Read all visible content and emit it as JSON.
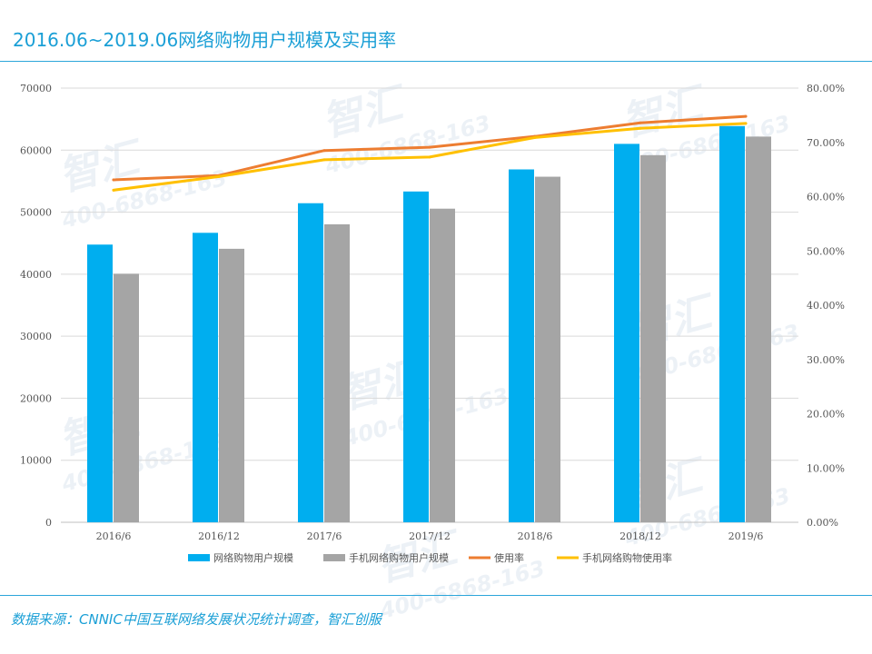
{
  "header": {
    "title": "2016.06~2019.06网络购物用户规模及实用率"
  },
  "footer": {
    "source": "数据来源：CNNIC中国互联网络发展状况统计调查，智汇创服"
  },
  "watermark": {
    "brand": "智汇",
    "phone": "400-6868-163"
  },
  "colors": {
    "accent": "#1a9fd6",
    "series1": "#00aeef",
    "series2": "#a5a5a5",
    "series3": "#ed7d31",
    "series4": "#ffc000"
  },
  "chart_data": {
    "type": "bar",
    "title": "2016.06~2019.06网络购物用户规模及实用率",
    "categories": [
      "2016/6",
      "2016/12",
      "2017/6",
      "2017/12",
      "2018/6",
      "2018/12",
      "2019/6"
    ],
    "ylim": [
      0,
      70000
    ],
    "yticks": [
      "0",
      "10000",
      "20000",
      "30000",
      "40000",
      "50000",
      "60000",
      "70000"
    ],
    "y2lim": [
      0,
      0.8
    ],
    "y2ticks": [
      "0.00%",
      "10.00%",
      "20.00%",
      "30.00%",
      "40.00%",
      "50.00%",
      "60.00%",
      "70.00%",
      "80.00%"
    ],
    "grid": true,
    "legend_position": "bottom",
    "series": [
      {
        "name": "网络购物用户规模",
        "type": "bar",
        "axis": "left",
        "color": "#00aeef",
        "values": [
          44772,
          46670,
          51443,
          53332,
          56892,
          61011,
          63882
        ]
      },
      {
        "name": "手机网络购物用户规模",
        "type": "bar",
        "axis": "left",
        "color": "#a5a5a5",
        "values": [
          40070,
          44093,
          48042,
          50563,
          55715,
          59191,
          62183
        ]
      },
      {
        "name": "使用率",
        "type": "line",
        "axis": "right",
        "color": "#ed7d31",
        "values": [
          0.631,
          0.639,
          0.685,
          0.691,
          0.711,
          0.736,
          0.748
        ]
      },
      {
        "name": "手机网络购物使用率",
        "type": "line",
        "axis": "right",
        "color": "#ffc000",
        "values": [
          0.612,
          0.637,
          0.668,
          0.673,
          0.709,
          0.726,
          0.735
        ]
      }
    ]
  }
}
